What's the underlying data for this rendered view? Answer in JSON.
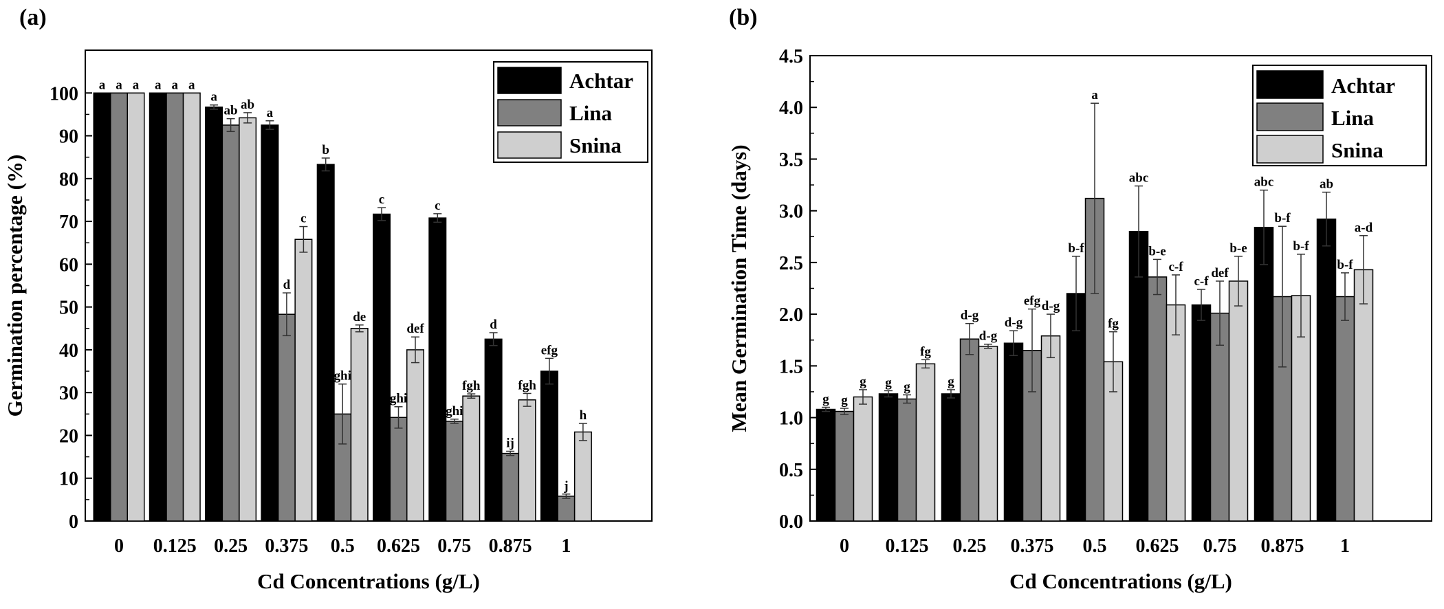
{
  "chart_data": [
    {
      "type": "bar",
      "panel_label": "(a)",
      "xlabel": "Cd Concentrations (g/L)",
      "ylabel": "Germination percentage (%)",
      "ylim": [
        0,
        110
      ],
      "yticks": [
        0,
        10,
        20,
        30,
        40,
        50,
        60,
        70,
        80,
        90,
        100
      ],
      "categories": [
        "0",
        "0.125",
        "0.25",
        "0.375",
        "0.5",
        "0.625",
        "0.75",
        "0.875",
        "1"
      ],
      "legend_position": "top-right",
      "series": [
        {
          "name": "Achtar",
          "color": "#000000",
          "values": [
            100,
            100,
            96.7,
            92.5,
            83.3,
            71.7,
            70.8,
            42.5,
            35
          ],
          "errors": [
            0,
            0,
            0.5,
            1,
            1.5,
            1.5,
            1,
            1.5,
            3
          ],
          "labels": [
            "a",
            "a",
            "a",
            "a",
            "b",
            "c",
            "c",
            "d",
            "efg"
          ]
        },
        {
          "name": "Lina",
          "color": "#808080",
          "values": [
            100,
            100,
            92.5,
            48.3,
            25,
            24.2,
            23.3,
            15.8,
            5.8
          ],
          "errors": [
            0,
            0,
            1.5,
            5,
            7,
            2.5,
            0.5,
            0.5,
            0.5
          ],
          "labels": [
            "a",
            "a",
            "ab",
            "d",
            "ghi",
            "ghi",
            "ghi",
            "ij",
            "j"
          ]
        },
        {
          "name": "Snina",
          "color": "#cfcfcf",
          "values": [
            100,
            100,
            94.2,
            65.8,
            45,
            40,
            29.2,
            28.3,
            20.8
          ],
          "errors": [
            0,
            0,
            1.2,
            3,
            0.8,
            3,
            0.5,
            1.5,
            2
          ],
          "labels": [
            "a",
            "a",
            "ab",
            "c",
            "de",
            "def",
            "fgh",
            "fgh",
            "h"
          ]
        }
      ]
    },
    {
      "type": "bar",
      "panel_label": "(b)",
      "xlabel": "Cd Concentrations (g/L)",
      "ylabel": "Mean Germination Time (days)",
      "ylim": [
        0,
        4.5
      ],
      "yticks": [
        "0.0",
        "0.5",
        "1.0",
        "1.5",
        "2.0",
        "2.5",
        "3.0",
        "3.5",
        "4.0",
        "4.5"
      ],
      "categories": [
        "0",
        "0.125",
        "0.25",
        "0.375",
        "0.5",
        "0.625",
        "0.75",
        "0.875",
        "1"
      ],
      "legend_position": "top-right",
      "series": [
        {
          "name": "Achtar",
          "color": "#000000",
          "values": [
            1.08,
            1.23,
            1.23,
            1.72,
            2.2,
            2.8,
            2.09,
            2.84,
            2.92
          ],
          "errors": [
            0.02,
            0.03,
            0.04,
            0.12,
            0.36,
            0.44,
            0.15,
            0.36,
            0.26
          ],
          "labels": [
            "g",
            "g",
            "g",
            "d-g",
            "b-f",
            "abc",
            "c-f",
            "abc",
            "ab"
          ]
        },
        {
          "name": "Lina",
          "color": "#808080",
          "values": [
            1.06,
            1.18,
            1.76,
            1.65,
            3.12,
            2.36,
            2.01,
            2.17,
            2.17
          ],
          "errors": [
            0.03,
            0.04,
            0.15,
            0.4,
            0.92,
            0.17,
            0.31,
            0.68,
            0.23
          ],
          "labels": [
            "g",
            "g",
            "d-g",
            "efg",
            "a",
            "b-e",
            "def",
            "b-f",
            "b-f"
          ]
        },
        {
          "name": "Snina",
          "color": "#cfcfcf",
          "values": [
            1.2,
            1.52,
            1.69,
            1.79,
            1.54,
            2.09,
            2.32,
            2.18,
            2.43
          ],
          "errors": [
            0.07,
            0.04,
            0.02,
            0.21,
            0.29,
            0.29,
            0.24,
            0.4,
            0.33
          ],
          "labels": [
            "g",
            "fg",
            "d-g",
            "d-g",
            "fg",
            "c-f",
            "b-e",
            "b-f",
            "a-d"
          ]
        }
      ]
    }
  ]
}
